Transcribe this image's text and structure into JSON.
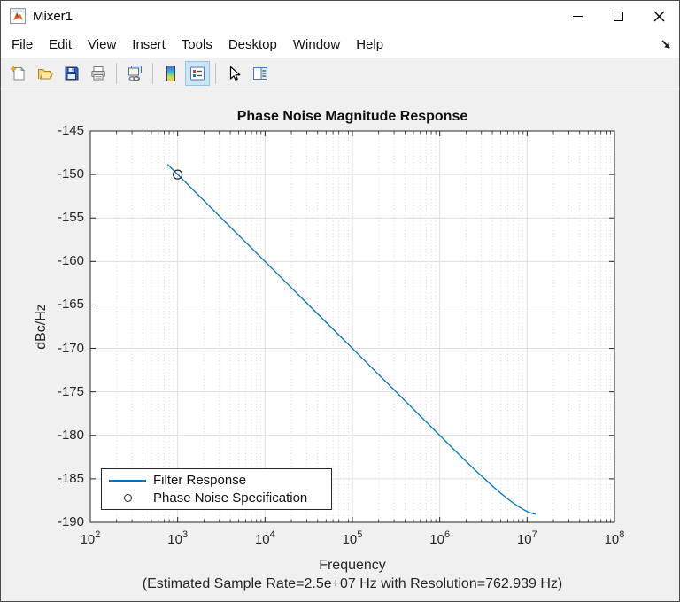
{
  "window": {
    "title": "Mixer1"
  },
  "menu": {
    "items": [
      "File",
      "Edit",
      "View",
      "Insert",
      "Tools",
      "Desktop",
      "Window",
      "Help"
    ]
  },
  "toolbar": {
    "buttons": [
      "new-figure",
      "open-file",
      "save-figure",
      "print-figure",
      "link-plot",
      "insert-colorbar",
      "insert-legend",
      "edit-plot",
      "property-inspector"
    ],
    "active_button": "insert-legend"
  },
  "colors": {
    "figure_background": "#f0f0f0",
    "axes": "#262626",
    "line_accent": "#0072BD"
  },
  "chart_data": {
    "type": "line",
    "title": "Phase Noise Magnitude Response",
    "ylabel": "dBc/Hz",
    "xlabel": "Frequency",
    "xlabel_note": "(Estimated Sample Rate=2.5e+07 Hz with Resolution=762.939 Hz)",
    "x_scale": "log",
    "xlim": [
      100,
      100000000
    ],
    "ylim": [
      -190,
      -145
    ],
    "x_tick_mantissa": "10",
    "x_tick_exponents": [
      2,
      3,
      4,
      5,
      6,
      7,
      8
    ],
    "y_ticks": [
      -145,
      -150,
      -155,
      -160,
      -165,
      -170,
      -175,
      -180,
      -185,
      -190
    ],
    "grid": {
      "x_major": true,
      "x_minor_dotted": true,
      "y_major": true
    },
    "axes_color": "#262626",
    "legend_position": "southwest",
    "series": [
      {
        "name": "Filter Response",
        "color": "#0072BD",
        "points": [
          [
            762.939,
            -148.83
          ],
          [
            1000,
            -150.0
          ],
          [
            2000,
            -153.01
          ],
          [
            5000,
            -156.99
          ],
          [
            10000,
            -160.0
          ],
          [
            20000,
            -163.01
          ],
          [
            50000,
            -166.99
          ],
          [
            100000,
            -170.0
          ],
          [
            200000,
            -173.01
          ],
          [
            500000,
            -176.99
          ],
          [
            1000000,
            -180.0
          ],
          [
            1500000,
            -181.76
          ],
          [
            2000000,
            -183.0
          ],
          [
            2500000,
            -183.92
          ],
          [
            3000000,
            -184.65
          ],
          [
            4000000,
            -185.82
          ],
          [
            5000000,
            -186.65
          ],
          [
            6000000,
            -187.3
          ],
          [
            7000000,
            -187.8
          ],
          [
            8000000,
            -188.2
          ],
          [
            9000000,
            -188.5
          ],
          [
            10000000,
            -188.75
          ],
          [
            11000000,
            -188.92
          ],
          [
            12000000,
            -189.02
          ],
          [
            12500000,
            -189.05
          ]
        ]
      }
    ],
    "markers": [
      {
        "name": "Phase Noise Specification",
        "shape": "circle",
        "color": "#262626",
        "x": 1000,
        "y": -150
      }
    ]
  }
}
